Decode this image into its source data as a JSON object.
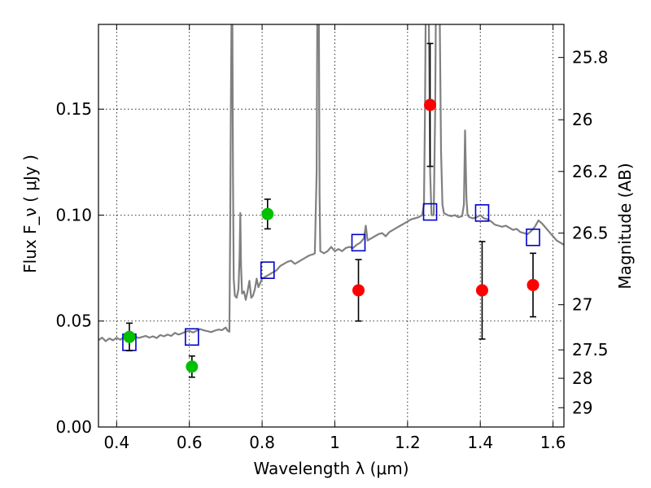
{
  "chart_data": {
    "type": "scatter",
    "xlabel": "Wavelength  λ (μm)",
    "ylabel": "Flux  F_ν  ( μJy )",
    "ylabel_right": "Magnitude (AB)",
    "xlim": [
      0.35,
      1.63
    ],
    "ylim": [
      0.0,
      0.19
    ],
    "grid": true,
    "x_ticks": [
      0.4,
      0.6,
      0.8,
      1.0,
      1.2,
      1.4,
      1.6
    ],
    "x_tick_labels": [
      "0.4",
      "0.6",
      "0.8",
      "1",
      "1.2",
      "1.4",
      "1.6"
    ],
    "y_ticks": [
      0.0,
      0.05,
      0.1,
      0.15
    ],
    "y_tick_labels": [
      "0.00",
      "0.05",
      "0.10",
      "0.15"
    ],
    "right_ticks": [
      {
        "label": "25.8",
        "flux": 0.1744
      },
      {
        "label": "26",
        "flux": 0.145
      },
      {
        "label": "26.2",
        "flux": 0.1206
      },
      {
        "label": "26.5",
        "flux": 0.0915
      },
      {
        "label": "27",
        "flux": 0.0577
      },
      {
        "label": "27.5",
        "flux": 0.0364
      },
      {
        "label": "28",
        "flux": 0.023
      },
      {
        "label": "29",
        "flux": 0.0091
      }
    ],
    "series": [
      {
        "kind": "line",
        "color": "#808080",
        "points": [
          [
            0.35,
            0.041
          ],
          [
            0.36,
            0.0422
          ],
          [
            0.37,
            0.0405
          ],
          [
            0.38,
            0.0418
          ],
          [
            0.39,
            0.0409
          ],
          [
            0.4,
            0.0421
          ],
          [
            0.41,
            0.0412
          ],
          [
            0.42,
            0.0425
          ],
          [
            0.43,
            0.0415
          ],
          [
            0.44,
            0.044
          ],
          [
            0.45,
            0.0428
          ],
          [
            0.46,
            0.042
          ],
          [
            0.47,
            0.0425
          ],
          [
            0.48,
            0.043
          ],
          [
            0.49,
            0.0422
          ],
          [
            0.5,
            0.0428
          ],
          [
            0.51,
            0.042
          ],
          [
            0.52,
            0.0434
          ],
          [
            0.53,
            0.0428
          ],
          [
            0.54,
            0.0436
          ],
          [
            0.55,
            0.043
          ],
          [
            0.56,
            0.0444
          ],
          [
            0.57,
            0.0436
          ],
          [
            0.58,
            0.0442
          ],
          [
            0.59,
            0.045
          ],
          [
            0.6,
            0.0454
          ],
          [
            0.61,
            0.0446
          ],
          [
            0.62,
            0.0455
          ],
          [
            0.63,
            0.0462
          ],
          [
            0.64,
            0.0456
          ],
          [
            0.65,
            0.0452
          ],
          [
            0.66,
            0.0448
          ],
          [
            0.67,
            0.0455
          ],
          [
            0.68,
            0.046
          ],
          [
            0.69,
            0.0457
          ],
          [
            0.7,
            0.047
          ],
          [
            0.705,
            0.0455
          ],
          [
            0.71,
            0.045
          ],
          [
            0.712,
            0.09
          ],
          [
            0.714,
            0.15
          ],
          [
            0.716,
            0.2
          ],
          [
            0.718,
            0.2
          ],
          [
            0.72,
            0.12
          ],
          [
            0.722,
            0.07
          ],
          [
            0.725,
            0.062
          ],
          [
            0.73,
            0.061
          ],
          [
            0.735,
            0.065
          ],
          [
            0.738,
            0.08
          ],
          [
            0.74,
            0.101
          ],
          [
            0.742,
            0.076
          ],
          [
            0.745,
            0.063
          ],
          [
            0.75,
            0.064
          ],
          [
            0.755,
            0.06
          ],
          [
            0.76,
            0.064
          ],
          [
            0.765,
            0.069
          ],
          [
            0.77,
            0.061
          ],
          [
            0.775,
            0.062
          ],
          [
            0.78,
            0.065
          ],
          [
            0.785,
            0.07
          ],
          [
            0.79,
            0.066
          ],
          [
            0.795,
            0.068
          ],
          [
            0.8,
            0.07
          ],
          [
            0.81,
            0.071
          ],
          [
            0.82,
            0.072
          ],
          [
            0.83,
            0.073
          ],
          [
            0.84,
            0.074
          ],
          [
            0.85,
            0.076
          ],
          [
            0.86,
            0.077
          ],
          [
            0.87,
            0.078
          ],
          [
            0.88,
            0.0785
          ],
          [
            0.89,
            0.077
          ],
          [
            0.9,
            0.078
          ],
          [
            0.91,
            0.079
          ],
          [
            0.92,
            0.08
          ],
          [
            0.93,
            0.081
          ],
          [
            0.94,
            0.0815
          ],
          [
            0.945,
            0.082
          ],
          [
            0.95,
            0.12
          ],
          [
            0.952,
            0.2
          ],
          [
            0.956,
            0.2
          ],
          [
            0.958,
            0.11
          ],
          [
            0.96,
            0.083
          ],
          [
            0.97,
            0.082
          ],
          [
            0.98,
            0.083
          ],
          [
            0.99,
            0.085
          ],
          [
            1.0,
            0.083
          ],
          [
            1.01,
            0.084
          ],
          [
            1.02,
            0.083
          ],
          [
            1.03,
            0.0845
          ],
          [
            1.04,
            0.085
          ],
          [
            1.05,
            0.0845
          ],
          [
            1.06,
            0.086
          ],
          [
            1.07,
            0.087
          ],
          [
            1.08,
            0.089
          ],
          [
            1.085,
            0.095
          ],
          [
            1.09,
            0.088
          ],
          [
            1.1,
            0.089
          ],
          [
            1.11,
            0.09
          ],
          [
            1.12,
            0.091
          ],
          [
            1.13,
            0.0915
          ],
          [
            1.14,
            0.09
          ],
          [
            1.15,
            0.092
          ],
          [
            1.16,
            0.093
          ],
          [
            1.17,
            0.094
          ],
          [
            1.18,
            0.095
          ],
          [
            1.19,
            0.096
          ],
          [
            1.2,
            0.097
          ],
          [
            1.21,
            0.098
          ],
          [
            1.22,
            0.0985
          ],
          [
            1.23,
            0.099
          ],
          [
            1.24,
            0.1
          ],
          [
            1.245,
            0.105
          ],
          [
            1.248,
            0.15
          ],
          [
            1.25,
            0.2
          ],
          [
            1.258,
            0.2
          ],
          [
            1.262,
            0.12
          ],
          [
            1.266,
            0.1
          ],
          [
            1.272,
            0.1
          ],
          [
            1.276,
            0.15
          ],
          [
            1.278,
            0.2
          ],
          [
            1.288,
            0.2
          ],
          [
            1.292,
            0.13
          ],
          [
            1.296,
            0.105
          ],
          [
            1.3,
            0.101
          ],
          [
            1.31,
            0.1
          ],
          [
            1.32,
            0.0995
          ],
          [
            1.33,
            0.1
          ],
          [
            1.34,
            0.099
          ],
          [
            1.35,
            0.0995
          ],
          [
            1.355,
            0.105
          ],
          [
            1.358,
            0.14
          ],
          [
            1.362,
            0.108
          ],
          [
            1.365,
            0.1
          ],
          [
            1.37,
            0.099
          ],
          [
            1.38,
            0.0985
          ],
          [
            1.39,
            0.099
          ],
          [
            1.4,
            0.1
          ],
          [
            1.41,
            0.0985
          ],
          [
            1.42,
            0.098
          ],
          [
            1.43,
            0.097
          ],
          [
            1.44,
            0.0955
          ],
          [
            1.45,
            0.095
          ],
          [
            1.46,
            0.0945
          ],
          [
            1.47,
            0.095
          ],
          [
            1.48,
            0.094
          ],
          [
            1.49,
            0.093
          ],
          [
            1.5,
            0.0935
          ],
          [
            1.51,
            0.092
          ],
          [
            1.52,
            0.0915
          ],
          [
            1.53,
            0.091
          ],
          [
            1.54,
            0.0925
          ],
          [
            1.55,
            0.0945
          ],
          [
            1.56,
            0.0975
          ],
          [
            1.57,
            0.096
          ],
          [
            1.58,
            0.094
          ],
          [
            1.59,
            0.092
          ],
          [
            1.6,
            0.09
          ],
          [
            1.61,
            0.088
          ],
          [
            1.62,
            0.087
          ],
          [
            1.63,
            0.086
          ]
        ]
      },
      {
        "kind": "open-square",
        "color": "#0000cc",
        "points": [
          [
            0.435,
            0.04
          ],
          [
            0.607,
            0.0425
          ],
          [
            0.815,
            0.074
          ],
          [
            1.065,
            0.087
          ],
          [
            1.262,
            0.1015
          ],
          [
            1.405,
            0.101
          ],
          [
            1.545,
            0.0895
          ]
        ]
      },
      {
        "kind": "filled-circle",
        "color": "#00c000",
        "points": [
          {
            "x": 0.435,
            "y": 0.0425,
            "err": 0.0065
          },
          {
            "x": 0.607,
            "y": 0.0285,
            "err": 0.005
          },
          {
            "x": 0.815,
            "y": 0.1005,
            "err": 0.007
          }
        ]
      },
      {
        "kind": "filled-circle",
        "color": "#ff0000",
        "points": [
          {
            "x": 1.065,
            "y": 0.0645,
            "err": 0.0145
          },
          {
            "x": 1.262,
            "y": 0.152,
            "err": 0.029
          },
          {
            "x": 1.405,
            "y": 0.0645,
            "err": 0.023
          },
          {
            "x": 1.545,
            "y": 0.067,
            "err": 0.015
          }
        ]
      }
    ]
  }
}
